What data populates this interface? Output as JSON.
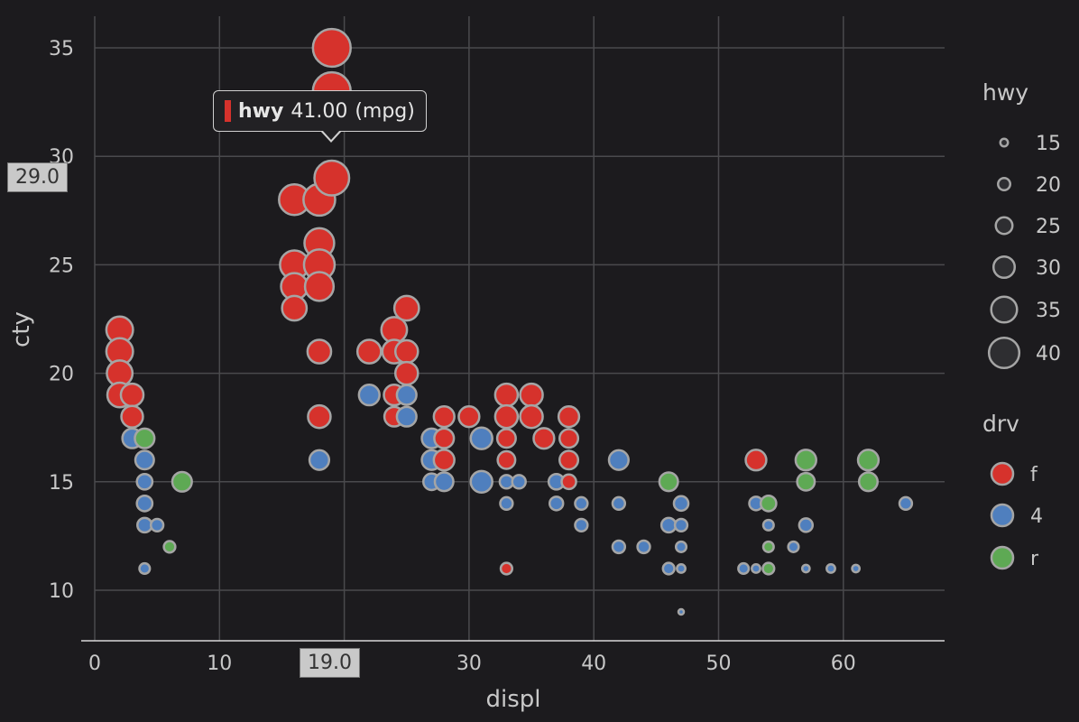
{
  "colors": {
    "f": "#d6322c",
    "4": "#4f7fbe",
    "r": "#5ea954",
    "outline": "#a5a5a5",
    "grid": "#4a4a4d"
  },
  "tooltip": {
    "series": "hwy",
    "value": "41.00",
    "unit": "(mpg)"
  },
  "crosshair": {
    "x_label": "19.0",
    "y_label": "29.0"
  },
  "chart_data": {
    "type": "scatter",
    "xlabel": "displ",
    "ylabel": "cty",
    "xlim": [
      0,
      68
    ],
    "ylim": [
      8,
      36
    ],
    "x_ticks": [
      0,
      10,
      20,
      30,
      40,
      50,
      60
    ],
    "y_ticks": [
      10,
      15,
      20,
      25,
      30,
      35
    ],
    "size_legend": {
      "title": "hwy",
      "values": [
        15,
        20,
        25,
        30,
        35,
        40
      ]
    },
    "color_legend": {
      "title": "drv",
      "items": [
        "f",
        "4",
        "r"
      ]
    },
    "points": [
      {
        "x": 2,
        "y": 22,
        "hwy": 33,
        "drv": "f"
      },
      {
        "x": 2,
        "y": 21,
        "hwy": 33,
        "drv": "f"
      },
      {
        "x": 2,
        "y": 20,
        "hwy": 32,
        "drv": "f"
      },
      {
        "x": 2,
        "y": 19,
        "hwy": 31,
        "drv": "f"
      },
      {
        "x": 3,
        "y": 19,
        "hwy": 29,
        "drv": "f"
      },
      {
        "x": 3,
        "y": 18,
        "hwy": 28,
        "drv": "f"
      },
      {
        "x": 3,
        "y": 17,
        "hwy": 26,
        "drv": "4"
      },
      {
        "x": 4,
        "y": 17,
        "hwy": 26,
        "drv": "r"
      },
      {
        "x": 4,
        "y": 16,
        "hwy": 25,
        "drv": "4"
      },
      {
        "x": 4,
        "y": 15,
        "hwy": 22,
        "drv": "4"
      },
      {
        "x": 4,
        "y": 14,
        "hwy": 22,
        "drv": "4"
      },
      {
        "x": 4,
        "y": 13,
        "hwy": 21,
        "drv": "4"
      },
      {
        "x": 5,
        "y": 13,
        "hwy": 19,
        "drv": "4"
      },
      {
        "x": 4,
        "y": 11,
        "hwy": 17,
        "drv": "4"
      },
      {
        "x": 6,
        "y": 12,
        "hwy": 18,
        "drv": "r"
      },
      {
        "x": 7,
        "y": 15,
        "hwy": 26,
        "drv": "r"
      },
      {
        "x": 16,
        "y": 28,
        "hwy": 37,
        "drv": "f"
      },
      {
        "x": 16,
        "y": 25,
        "hwy": 35,
        "drv": "f"
      },
      {
        "x": 16,
        "y": 24,
        "hwy": 33,
        "drv": "f"
      },
      {
        "x": 16,
        "y": 23,
        "hwy": 31,
        "drv": "f"
      },
      {
        "x": 18,
        "y": 28,
        "hwy": 38,
        "drv": "f"
      },
      {
        "x": 18,
        "y": 26,
        "hwy": 36,
        "drv": "f"
      },
      {
        "x": 18,
        "y": 25,
        "hwy": 37,
        "drv": "f"
      },
      {
        "x": 18,
        "y": 24,
        "hwy": 35,
        "drv": "f"
      },
      {
        "x": 18,
        "y": 21,
        "hwy": 30,
        "drv": "f"
      },
      {
        "x": 18,
        "y": 18,
        "hwy": 29,
        "drv": "f"
      },
      {
        "x": 18,
        "y": 16,
        "hwy": 26,
        "drv": "4"
      },
      {
        "x": 19,
        "y": 35,
        "hwy": 44,
        "drv": "f"
      },
      {
        "x": 19,
        "y": 33,
        "hwy": 44,
        "drv": "f"
      },
      {
        "x": 19,
        "y": 29,
        "hwy": 41,
        "drv": "f"
      },
      {
        "x": 22,
        "y": 21,
        "hwy": 30,
        "drv": "f"
      },
      {
        "x": 22,
        "y": 19,
        "hwy": 27,
        "drv": "4"
      },
      {
        "x": 24,
        "y": 22,
        "hwy": 32,
        "drv": "f"
      },
      {
        "x": 24,
        "y": 21,
        "hwy": 30,
        "drv": "f"
      },
      {
        "x": 24,
        "y": 19,
        "hwy": 27,
        "drv": "f"
      },
      {
        "x": 24,
        "y": 18,
        "hwy": 26,
        "drv": "f"
      },
      {
        "x": 25,
        "y": 23,
        "hwy": 31,
        "drv": "f"
      },
      {
        "x": 25,
        "y": 21,
        "hwy": 29,
        "drv": "f"
      },
      {
        "x": 25,
        "y": 20,
        "hwy": 29,
        "drv": "f"
      },
      {
        "x": 25,
        "y": 19,
        "hwy": 26,
        "drv": "4"
      },
      {
        "x": 25,
        "y": 18,
        "hwy": 26,
        "drv": "4"
      },
      {
        "x": 27,
        "y": 17,
        "hwy": 26,
        "drv": "4"
      },
      {
        "x": 27,
        "y": 16,
        "hwy": 26,
        "drv": "4"
      },
      {
        "x": 27,
        "y": 15,
        "hwy": 23,
        "drv": "4"
      },
      {
        "x": 28,
        "y": 18,
        "hwy": 27,
        "drv": "f"
      },
      {
        "x": 28,
        "y": 17,
        "hwy": 26,
        "drv": "f"
      },
      {
        "x": 28,
        "y": 16,
        "hwy": 27,
        "drv": "f"
      },
      {
        "x": 28,
        "y": 15,
        "hwy": 25,
        "drv": "4"
      },
      {
        "x": 30,
        "y": 18,
        "hwy": 27,
        "drv": "f"
      },
      {
        "x": 31,
        "y": 17,
        "hwy": 28,
        "drv": "4"
      },
      {
        "x": 31,
        "y": 15,
        "hwy": 28,
        "drv": "4"
      },
      {
        "x": 33,
        "y": 19,
        "hwy": 29,
        "drv": "f"
      },
      {
        "x": 33,
        "y": 18,
        "hwy": 29,
        "drv": "f"
      },
      {
        "x": 33,
        "y": 17,
        "hwy": 25,
        "drv": "f"
      },
      {
        "x": 33,
        "y": 16,
        "hwy": 24,
        "drv": "f"
      },
      {
        "x": 33,
        "y": 15,
        "hwy": 20,
        "drv": "4"
      },
      {
        "x": 33,
        "y": 14,
        "hwy": 19,
        "drv": "4"
      },
      {
        "x": 33,
        "y": 11,
        "hwy": 18,
        "drv": "f"
      },
      {
        "x": 34,
        "y": 15,
        "hwy": 20,
        "drv": "4"
      },
      {
        "x": 35,
        "y": 19,
        "hwy": 29,
        "drv": "f"
      },
      {
        "x": 35,
        "y": 18,
        "hwy": 29,
        "drv": "f"
      },
      {
        "x": 36,
        "y": 17,
        "hwy": 27,
        "drv": "f"
      },
      {
        "x": 37,
        "y": 15,
        "hwy": 22,
        "drv": "4"
      },
      {
        "x": 37,
        "y": 14,
        "hwy": 20,
        "drv": "4"
      },
      {
        "x": 38,
        "y": 18,
        "hwy": 27,
        "drv": "f"
      },
      {
        "x": 38,
        "y": 17,
        "hwy": 25,
        "drv": "f"
      },
      {
        "x": 38,
        "y": 16,
        "hwy": 25,
        "drv": "f"
      },
      {
        "x": 38,
        "y": 15,
        "hwy": 21,
        "drv": "f"
      },
      {
        "x": 39,
        "y": 14,
        "hwy": 19,
        "drv": "4"
      },
      {
        "x": 39,
        "y": 13,
        "hwy": 19,
        "drv": "4"
      },
      {
        "x": 42,
        "y": 16,
        "hwy": 26,
        "drv": "4"
      },
      {
        "x": 42,
        "y": 14,
        "hwy": 19,
        "drv": "4"
      },
      {
        "x": 42,
        "y": 12,
        "hwy": 19,
        "drv": "4"
      },
      {
        "x": 44,
        "y": 12,
        "hwy": 19,
        "drv": "4"
      },
      {
        "x": 46,
        "y": 15,
        "hwy": 25,
        "drv": "r"
      },
      {
        "x": 46,
        "y": 13,
        "hwy": 21,
        "drv": "4"
      },
      {
        "x": 46,
        "y": 11,
        "hwy": 18,
        "drv": "4"
      },
      {
        "x": 47,
        "y": 14,
        "hwy": 21,
        "drv": "4"
      },
      {
        "x": 47,
        "y": 13,
        "hwy": 19,
        "drv": "4"
      },
      {
        "x": 47,
        "y": 12,
        "hwy": 17,
        "drv": "4"
      },
      {
        "x": 47,
        "y": 11,
        "hwy": 15,
        "drv": "4"
      },
      {
        "x": 47,
        "y": 9,
        "hwy": 12,
        "drv": "4"
      },
      {
        "x": 52,
        "y": 11,
        "hwy": 17,
        "drv": "4"
      },
      {
        "x": 53,
        "y": 16,
        "hwy": 27,
        "drv": "f"
      },
      {
        "x": 53,
        "y": 14,
        "hwy": 20,
        "drv": "4"
      },
      {
        "x": 53,
        "y": 11,
        "hwy": 15,
        "drv": "4"
      },
      {
        "x": 54,
        "y": 14,
        "hwy": 22,
        "drv": "r"
      },
      {
        "x": 54,
        "y": 13,
        "hwy": 17,
        "drv": "4"
      },
      {
        "x": 54,
        "y": 12,
        "hwy": 17,
        "drv": "r"
      },
      {
        "x": 54,
        "y": 11,
        "hwy": 18,
        "drv": "r"
      },
      {
        "x": 56,
        "y": 12,
        "hwy": 17,
        "drv": "4"
      },
      {
        "x": 57,
        "y": 16,
        "hwy": 27,
        "drv": "r"
      },
      {
        "x": 57,
        "y": 15,
        "hwy": 24,
        "drv": "r"
      },
      {
        "x": 57,
        "y": 13,
        "hwy": 20,
        "drv": "4"
      },
      {
        "x": 57,
        "y": 11,
        "hwy": 14,
        "drv": "4"
      },
      {
        "x": 59,
        "y": 11,
        "hwy": 15,
        "drv": "4"
      },
      {
        "x": 61,
        "y": 11,
        "hwy": 14,
        "drv": "4"
      },
      {
        "x": 62,
        "y": 16,
        "hwy": 27,
        "drv": "r"
      },
      {
        "x": 62,
        "y": 15,
        "hwy": 25,
        "drv": "r"
      },
      {
        "x": 65,
        "y": 14,
        "hwy": 19,
        "drv": "4"
      }
    ]
  }
}
